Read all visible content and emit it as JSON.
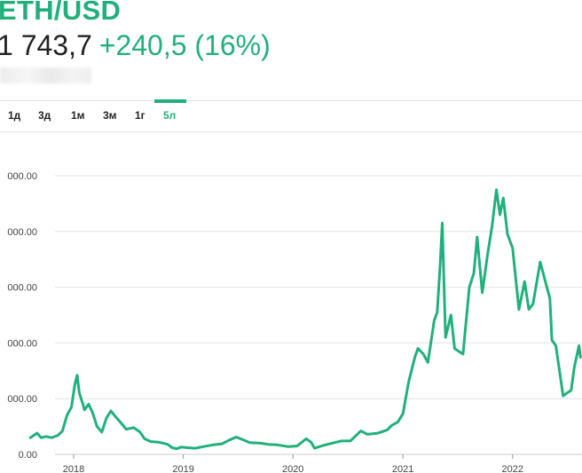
{
  "header": {
    "ticker": "ETH/USD",
    "price": "1 743,7",
    "change": "+240,5 (16%)"
  },
  "tabs": [
    {
      "label": "1д",
      "active": false
    },
    {
      "label": "3д",
      "active": false
    },
    {
      "label": "1м",
      "active": false
    },
    {
      "label": "3м",
      "active": false
    },
    {
      "label": "1г",
      "active": false
    },
    {
      "label": "5л",
      "active": true
    }
  ],
  "colors": {
    "accent": "#21b07c",
    "line": "#21b07c",
    "grid": "#e3e3e3"
  },
  "chart_data": {
    "type": "line",
    "title": "",
    "xlabel": "",
    "ylabel": "",
    "x_tick_labels": [
      "2018",
      "2019",
      "2020",
      "2021",
      "2022"
    ],
    "y_tick_labels": [
      "0.00",
      "000.00",
      "000.00",
      "000.00",
      "000.00",
      "000.00"
    ],
    "y_ticks": [
      0,
      1000,
      2000,
      3000,
      4000,
      5000
    ],
    "ylim": [
      0,
      5000
    ],
    "xlim": [
      "2017-05-01",
      "2022-08-20"
    ],
    "grid": true,
    "series": [
      {
        "x": [
          "2017-08-10",
          "2017-09-01",
          "2017-09-15",
          "2017-10-01",
          "2017-10-20",
          "2017-11-10",
          "2017-11-25",
          "2017-12-10",
          "2017-12-25",
          "2018-01-05",
          "2018-01-13",
          "2018-01-20",
          "2018-02-01",
          "2018-02-06",
          "2018-02-20",
          "2018-03-05",
          "2018-03-20",
          "2018-04-05",
          "2018-04-20",
          "2018-05-05",
          "2018-05-20",
          "2018-06-10",
          "2018-06-25",
          "2018-07-20",
          "2018-08-10",
          "2018-08-25",
          "2018-09-15",
          "2018-10-10",
          "2018-11-10",
          "2018-11-25",
          "2018-12-10",
          "2018-12-25",
          "2019-01-15",
          "2019-02-10",
          "2019-03-10",
          "2019-04-10",
          "2019-05-10",
          "2019-06-01",
          "2019-06-26",
          "2019-07-15",
          "2019-08-10",
          "2019-09-15",
          "2019-10-10",
          "2019-11-10",
          "2019-12-15",
          "2020-01-15",
          "2020-02-14",
          "2020-03-01",
          "2020-03-13",
          "2020-04-10",
          "2020-05-10",
          "2020-06-10",
          "2020-07-10",
          "2020-08-14",
          "2020-09-05",
          "2020-10-10",
          "2020-11-10",
          "2020-11-25",
          "2020-12-15",
          "2021-01-01",
          "2021-01-20",
          "2021-02-10",
          "2021-02-20",
          "2021-03-10",
          "2021-03-25",
          "2021-04-15",
          "2021-04-25",
          "2021-05-05",
          "2021-05-12",
          "2021-05-23",
          "2021-06-10",
          "2021-06-22",
          "2021-07-20",
          "2021-08-10",
          "2021-08-25",
          "2021-09-05",
          "2021-09-22",
          "2021-10-10",
          "2021-10-25",
          "2021-11-08",
          "2021-11-20",
          "2021-12-01",
          "2021-12-15",
          "2022-01-01",
          "2022-01-22",
          "2022-02-10",
          "2022-02-24",
          "2022-03-10",
          "2022-04-03",
          "2022-04-20",
          "2022-05-05",
          "2022-05-12",
          "2022-05-25",
          "2022-06-10",
          "2022-06-18",
          "2022-07-01",
          "2022-07-15",
          "2022-07-25",
          "2022-08-10",
          "2022-08-15"
        ],
        "values": [
          300,
          380,
          300,
          320,
          300,
          340,
          420,
          700,
          850,
          1250,
          1420,
          1100,
          900,
          800,
          900,
          750,
          500,
          400,
          650,
          780,
          680,
          550,
          450,
          480,
          400,
          280,
          230,
          220,
          180,
          120,
          100,
          130,
          120,
          110,
          140,
          170,
          190,
          250,
          310,
          270,
          210,
          200,
          180,
          170,
          140,
          150,
          280,
          220,
          110,
          160,
          200,
          240,
          240,
          420,
          360,
          380,
          440,
          520,
          580,
          730,
          1300,
          1750,
          1900,
          1800,
          1650,
          2400,
          2550,
          3400,
          4150,
          2100,
          2500,
          1900,
          1800,
          3000,
          3250,
          3900,
          2900,
          3600,
          4100,
          4750,
          4300,
          4600,
          3950,
          3700,
          2600,
          3100,
          2600,
          2700,
          3450,
          3100,
          2800,
          2050,
          1950,
          1350,
          1050,
          1100,
          1150,
          1550,
          1950,
          1740
        ]
      }
    ]
  }
}
